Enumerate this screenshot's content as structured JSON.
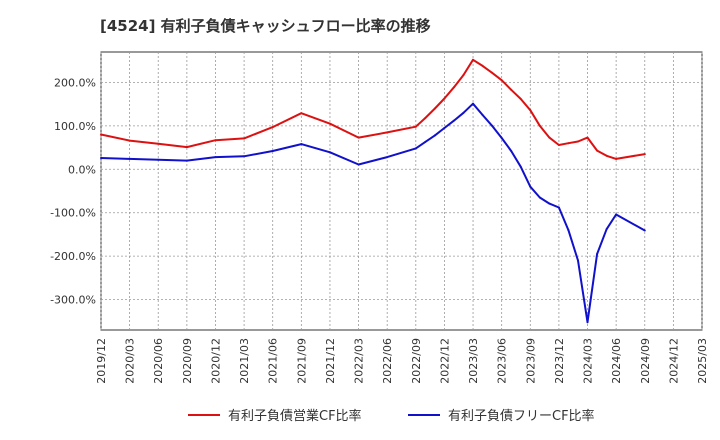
{
  "chart_data": {
    "type": "line",
    "title": "[4524]  有利子負債キャッシュフロー比率の推移",
    "xlabel": "",
    "ylabel": "",
    "x_ticks": [
      "2019/12",
      "2020/03",
      "2020/06",
      "2020/09",
      "2020/12",
      "2021/03",
      "2021/06",
      "2021/09",
      "2021/12",
      "2022/03",
      "2022/06",
      "2022/09",
      "2022/12",
      "2023/03",
      "2023/06",
      "2023/09",
      "2023/12",
      "2024/03",
      "2024/06",
      "2024/09",
      "2024/12",
      "2025/03"
    ],
    "y_ticks": [
      {
        "value": 200,
        "label": "200.0%"
      },
      {
        "value": 100,
        "label": "100.0%"
      },
      {
        "value": 0,
        "label": "0.0%"
      },
      {
        "value": -100,
        "label": "-100.0%"
      },
      {
        "value": -200,
        "label": "-200.0%"
      },
      {
        "value": -300,
        "label": "-300.0%"
      }
    ],
    "ylim": [
      -370,
      270
    ],
    "xlim": [
      "2019/12",
      "2025/03"
    ],
    "grid": true,
    "legend_position": "bottom",
    "series": [
      {
        "name": "有利子負債営業CF比率",
        "color": "#dd1111",
        "points": [
          [
            "2019/12",
            80
          ],
          [
            "2020/03",
            66
          ],
          [
            "2020/06",
            59
          ],
          [
            "2020/09",
            51
          ],
          [
            "2020/12",
            67
          ],
          [
            "2021/03",
            71
          ],
          [
            "2021/06",
            97
          ],
          [
            "2021/09",
            129
          ],
          [
            "2021/12",
            105
          ],
          [
            "2022/03",
            73
          ],
          [
            "2022/06",
            85
          ],
          [
            "2022/09",
            98
          ],
          [
            "2022/10",
            118
          ],
          [
            "2022/11",
            140
          ],
          [
            "2022/12",
            163
          ],
          [
            "2023/01",
            189
          ],
          [
            "2023/02",
            217
          ],
          [
            "2023/03",
            252
          ],
          [
            "2023/04",
            238
          ],
          [
            "2023/05",
            222
          ],
          [
            "2023/06",
            205
          ],
          [
            "2023/07",
            183
          ],
          [
            "2023/08",
            162
          ],
          [
            "2023/09",
            136
          ],
          [
            "2023/10",
            100
          ],
          [
            "2023/11",
            73
          ],
          [
            "2023/12",
            56
          ],
          [
            "2024/01",
            60
          ],
          [
            "2024/02",
            64
          ],
          [
            "2024/03",
            73
          ],
          [
            "2024/04",
            43
          ],
          [
            "2024/05",
            31
          ],
          [
            "2024/06",
            24
          ],
          [
            "2024/09",
            35
          ]
        ]
      },
      {
        "name": "有利子負債フリーCF比率",
        "color": "#1111cc",
        "points": [
          [
            "2019/12",
            26
          ],
          [
            "2020/03",
            24
          ],
          [
            "2020/06",
            22
          ],
          [
            "2020/09",
            20
          ],
          [
            "2020/12",
            28
          ],
          [
            "2021/03",
            30
          ],
          [
            "2021/06",
            42
          ],
          [
            "2021/09",
            58
          ],
          [
            "2021/12",
            39
          ],
          [
            "2022/03",
            11
          ],
          [
            "2022/06",
            28
          ],
          [
            "2022/09",
            48
          ],
          [
            "2022/10",
            63
          ],
          [
            "2022/11",
            78
          ],
          [
            "2022/12",
            95
          ],
          [
            "2023/01",
            112
          ],
          [
            "2023/02",
            130
          ],
          [
            "2023/03",
            151
          ],
          [
            "2023/04",
            125
          ],
          [
            "2023/05",
            100
          ],
          [
            "2023/06",
            72
          ],
          [
            "2023/07",
            42
          ],
          [
            "2023/08",
            6
          ],
          [
            "2023/09",
            -40
          ],
          [
            "2023/10",
            -65
          ],
          [
            "2023/11",
            -79
          ],
          [
            "2023/12",
            -88
          ],
          [
            "2024/01",
            -140
          ],
          [
            "2024/02",
            -210
          ],
          [
            "2024/03",
            -352
          ],
          [
            "2024/04",
            -195
          ],
          [
            "2024/05",
            -138
          ],
          [
            "2024/06",
            -104
          ],
          [
            "2024/09",
            -141
          ]
        ]
      }
    ]
  }
}
